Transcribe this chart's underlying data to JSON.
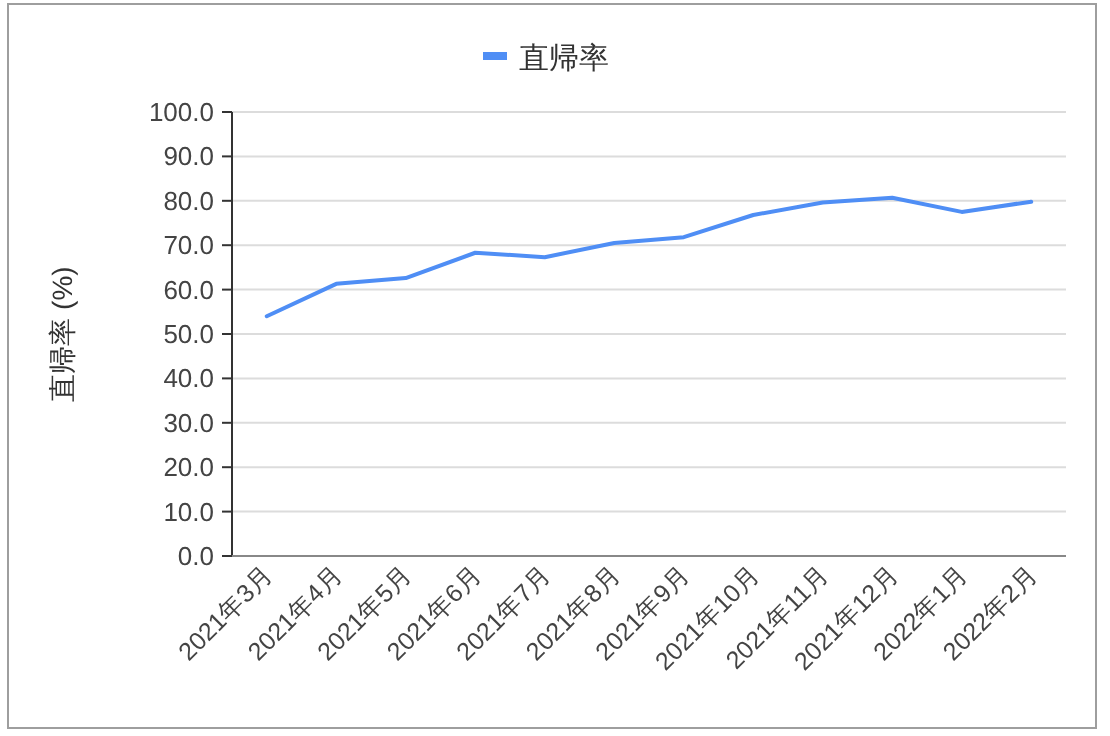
{
  "chart_data": {
    "type": "line",
    "ylabel": "直帰率 (%)",
    "categories": [
      "2021年3月",
      "2021年4月",
      "2021年5月",
      "2021年6月",
      "2021年7月",
      "2021年8月",
      "2021年9月",
      "2021年10月",
      "2021年11月",
      "2021年12月",
      "2022年1月",
      "2022年2月"
    ],
    "series": [
      {
        "name": "直帰率",
        "color": "#4f8ef5",
        "values": [
          54.0,
          61.3,
          62.6,
          68.3,
          67.3,
          70.5,
          71.8,
          76.8,
          79.6,
          80.7,
          77.5,
          79.8
        ]
      }
    ],
    "ylim": [
      0,
      100
    ],
    "yticks": [
      {
        "value": 0,
        "label": "0.0"
      },
      {
        "value": 10,
        "label": "10.0"
      },
      {
        "value": 20,
        "label": "20.0"
      },
      {
        "value": 30,
        "label": "30.0"
      },
      {
        "value": 40,
        "label": "40.0"
      },
      {
        "value": 50,
        "label": "50.0"
      },
      {
        "value": 60,
        "label": "60.0"
      },
      {
        "value": 70,
        "label": "70.0"
      },
      {
        "value": 80,
        "label": "80.0"
      },
      {
        "value": 90,
        "label": "90.0"
      },
      {
        "value": 100,
        "label": "100.0"
      }
    ],
    "grid": "y",
    "legend": "top",
    "marker": "none",
    "line_style": "solid"
  }
}
